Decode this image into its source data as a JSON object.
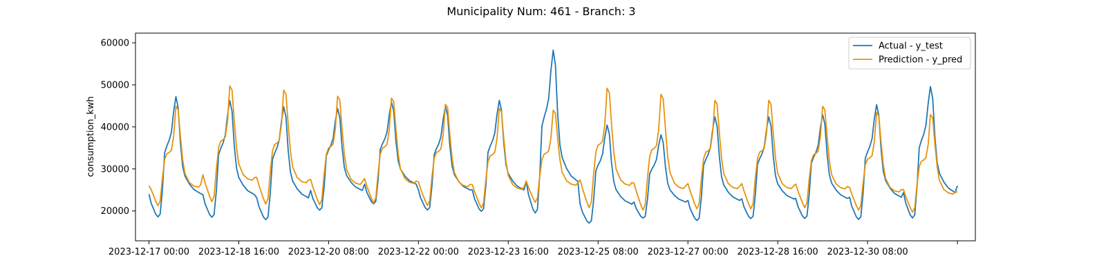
{
  "chart_data": {
    "type": "line",
    "title": "Municipality Num: 461 - Branch: 3",
    "xlabel": "",
    "ylabel": "consumption_kwh",
    "x_start": "2023-12-17 00:00",
    "x_end": "2024-01-01 00:00",
    "x_step_hours": 1,
    "xlim": [
      "2023-12-16 18:00",
      "2024-01-01 08:00"
    ],
    "ylim": [
      12900,
      62300
    ],
    "x_ticks": [
      {
        "pos": "2023-12-17 00:00",
        "label": "2023-12-17 00:00"
      },
      {
        "pos": "2023-12-18 16:00",
        "label": "2023-12-18 16:00"
      },
      {
        "pos": "2023-12-20 08:00",
        "label": "2023-12-20 08:00"
      },
      {
        "pos": "2023-12-22 00:00",
        "label": "2023-12-22 00:00"
      },
      {
        "pos": "2023-12-23 16:00",
        "label": "2023-12-23 16:00"
      },
      {
        "pos": "2023-12-25 08:00",
        "label": "2023-12-25 08:00"
      },
      {
        "pos": "2023-12-27 00:00",
        "label": "2023-12-27 00:00"
      },
      {
        "pos": "2023-12-28 16:00",
        "label": "2023-12-28 16:00"
      },
      {
        "pos": "2023-12-30 08:00",
        "label": "2023-12-30 08:00"
      },
      {
        "pos": "2024-01-01 00:00",
        "label": ""
      }
    ],
    "y_ticks": [
      20000,
      30000,
      40000,
      50000,
      60000
    ],
    "grid": false,
    "legend_position": "top-right",
    "series": [
      {
        "name": "Actual - y_test",
        "color": "#1f77b4",
        "profile_keys": [
          [
            0,
            0.25
          ],
          [
            1,
            0.18
          ],
          [
            3,
            0.1
          ],
          [
            4,
            0.08
          ],
          [
            5,
            0.1
          ],
          [
            6,
            0.28
          ],
          [
            7,
            0.55
          ],
          [
            8,
            0.6
          ],
          [
            9,
            0.64
          ],
          [
            10,
            0.7
          ],
          [
            11,
            0.85
          ],
          [
            12,
            0.96
          ],
          [
            13,
            0.88
          ],
          [
            14,
            0.62
          ],
          [
            15,
            0.45
          ],
          [
            16,
            0.38
          ],
          [
            18,
            0.32
          ],
          [
            20,
            0.28
          ],
          [
            22,
            0.26
          ],
          [
            23,
            0.25
          ]
        ],
        "days": [
          {
            "min": 16000,
            "max": 48500
          },
          {
            "min": 16000,
            "max": 47500
          },
          {
            "min": 15500,
            "max": 46000
          },
          {
            "min": 18000,
            "max": 45500
          },
          {
            "min": 19500,
            "max": 47000
          },
          {
            "min": 18000,
            "max": 46000
          },
          {
            "min": 17500,
            "max": 47500
          },
          {
            "min": 16000,
            "max": 60000
          },
          {
            "min": 15000,
            "max": 41500
          },
          {
            "min": 16500,
            "max": 39000
          },
          {
            "min": 15500,
            "max": 43500
          },
          {
            "min": 16000,
            "max": 43500
          },
          {
            "min": 16000,
            "max": 44000
          },
          {
            "min": 15500,
            "max": 46500
          },
          {
            "min": 15500,
            "max": 51000
          }
        ],
        "end_value": 26000
      },
      {
        "name": "Prediction - y_pred",
        "color": "#e8920a",
        "profile_keys": [
          [
            0,
            0.3
          ],
          [
            1,
            0.24
          ],
          [
            3,
            0.14
          ],
          [
            4,
            0.1
          ],
          [
            5,
            0.14
          ],
          [
            6,
            0.34
          ],
          [
            7,
            0.5
          ],
          [
            8,
            0.55
          ],
          [
            9,
            0.56
          ],
          [
            10,
            0.58
          ],
          [
            11,
            0.7
          ],
          [
            12,
            0.96
          ],
          [
            13,
            0.93
          ],
          [
            14,
            0.7
          ],
          [
            15,
            0.5
          ],
          [
            16,
            0.38
          ],
          [
            18,
            0.3
          ],
          [
            20,
            0.27
          ],
          [
            22,
            0.26
          ],
          [
            23,
            0.28
          ]
        ],
        "days": [
          {
            "min": 18500,
            "max": 46000
          },
          {
            "min": 19000,
            "max": 51000
          },
          {
            "min": 18500,
            "max": 50000
          },
          {
            "min": 18500,
            "max": 48500
          },
          {
            "min": 19000,
            "max": 48000
          },
          {
            "min": 18500,
            "max": 46500
          },
          {
            "min": 18000,
            "max": 45500
          },
          {
            "min": 19500,
            "max": 45000
          },
          {
            "min": 17500,
            "max": 50500
          },
          {
            "min": 17000,
            "max": 49000
          },
          {
            "min": 17500,
            "max": 47500
          },
          {
            "min": 17500,
            "max": 47500
          },
          {
            "min": 18000,
            "max": 46000
          },
          {
            "min": 17500,
            "max": 44500
          },
          {
            "min": 17000,
            "max": 44000
          }
        ],
        "start_value": 26000,
        "end_value": 24500
      }
    ]
  }
}
